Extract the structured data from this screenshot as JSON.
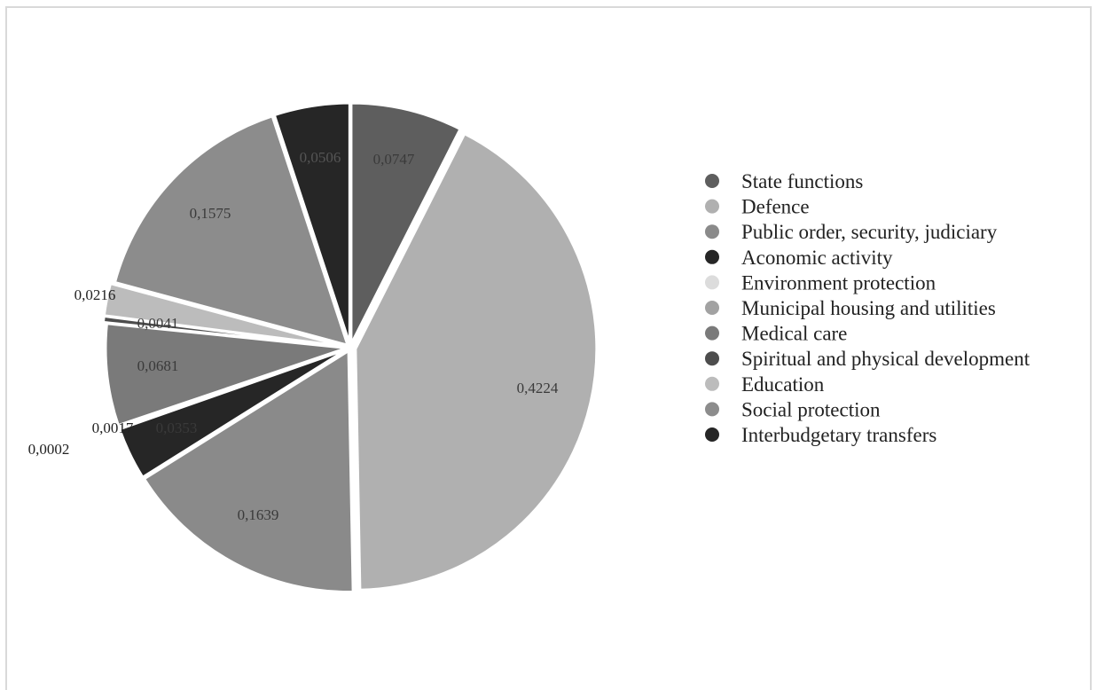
{
  "chart_data": {
    "type": "pie",
    "title": "",
    "legend_position": "right",
    "slices": [
      {
        "name": "State functions",
        "value": 0.0747,
        "label": "0,0747",
        "color": "#5e5e5e",
        "label_color": "#3a3a3a"
      },
      {
        "name": "Defence",
        "value": 0.4224,
        "label": "0,4224",
        "color": "#b0b0b0",
        "label_color": "#3a3a3a"
      },
      {
        "name": "Public order, security, judiciary",
        "value": 0.1639,
        "label": "0,1639",
        "color": "#8a8a8a",
        "label_color": "#3a3a3a"
      },
      {
        "name": "Aconomic activity",
        "value": 0.0353,
        "label": "0,0353",
        "color": "#262626",
        "label_color": "#3a3a3a"
      },
      {
        "name": "Environment protection",
        "value": 0.0002,
        "label": "0,0002",
        "color": "#dcdcdc",
        "label_color": "#222222"
      },
      {
        "name": "Municipal housing and utilities",
        "value": 0.0017,
        "label": "0,0017",
        "color": "#a2a2a2",
        "label_color": "#222222"
      },
      {
        "name": "Medical care",
        "value": 0.0681,
        "label": "0,0681",
        "color": "#7a7a7a",
        "label_color": "#3a3a3a"
      },
      {
        "name": "Spiritual and physical development",
        "value": 0.0041,
        "label": "0,0041",
        "color": "#4d4d4d",
        "label_color": "#3a3a3a"
      },
      {
        "name": "Education",
        "value": 0.0216,
        "label": "0,0216",
        "color": "#bcbcbc",
        "label_color": "#222222"
      },
      {
        "name": "Social protection",
        "value": 0.1575,
        "label": "0,1575",
        "color": "#8c8c8c",
        "label_color": "#3a3a3a"
      },
      {
        "name": "Interbudgetary transfers",
        "value": 0.0506,
        "label": "0,0506",
        "color": "#262626",
        "label_color": "#555555"
      }
    ]
  }
}
